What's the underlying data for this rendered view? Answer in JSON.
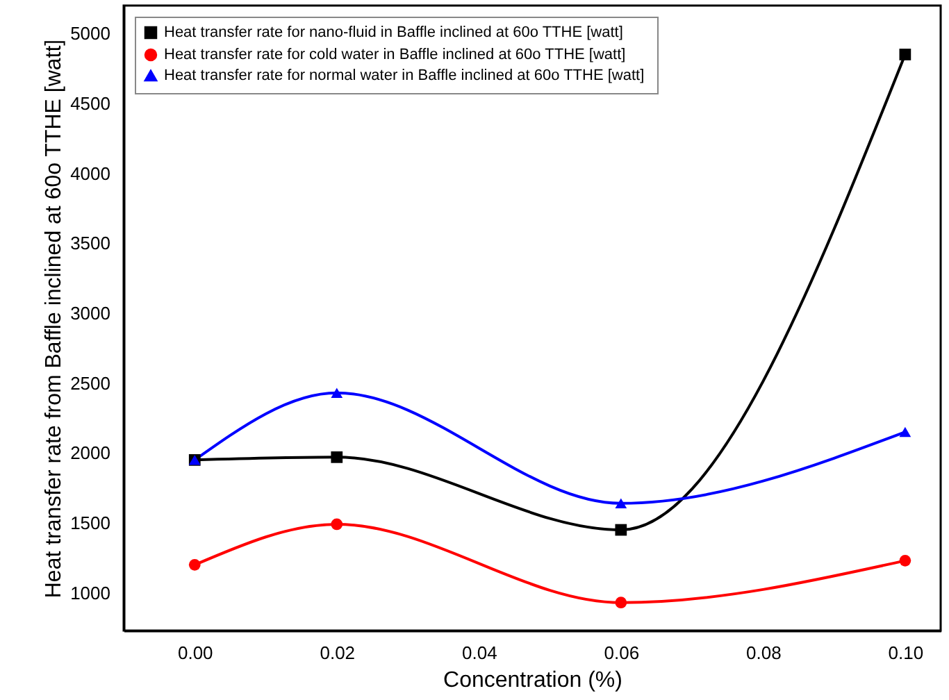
{
  "chart_data": {
    "type": "line",
    "xlabel": "Concentration (%)",
    "ylabel": "Heat transfer rate from Baffle inclined at 60o TTHE [watt]",
    "x": [
      0.0,
      0.02,
      0.06,
      0.1
    ],
    "xlim": [
      -0.01,
      0.105
    ],
    "xticks": [
      {
        "value": 0.0,
        "label": "0.00"
      },
      0.02,
      0.04,
      0.06,
      0.08,
      {
        "value": 0.1,
        "label": "0.10"
      }
    ],
    "ylim": [
      730,
      5200
    ],
    "yticks": [
      1000,
      1500,
      2000,
      2500,
      3000,
      3500,
      4000,
      4500,
      5000
    ],
    "grid": false,
    "legend": "top left",
    "line_style": "solid",
    "series": [
      {
        "name": "Heat transfer rate for nano-fluid in Baffle inclined at 60o TTHE [watt]",
        "color": "#000000",
        "marker": "square",
        "values": [
          1950,
          1970,
          1450,
          4850
        ]
      },
      {
        "name": "Heat transfer rate for cold water  in Baffle inclined at 60o TTHE [watt]",
        "color": "#ff0000",
        "marker": "circle",
        "values": [
          1200,
          1490,
          930,
          1230
        ]
      },
      {
        "name": "Heat transfer rate for normal water  in Baffle inclined at 60o TTHE [watt]",
        "color": "#0000ff",
        "marker": "triangle",
        "values": [
          1950,
          2430,
          1640,
          2150
        ]
      }
    ]
  }
}
